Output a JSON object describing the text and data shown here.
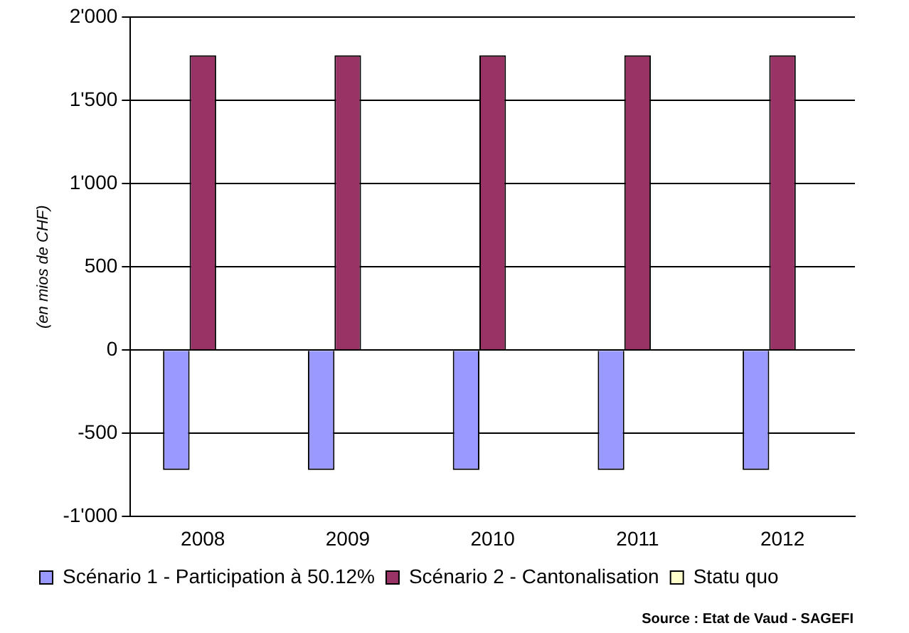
{
  "chart_data": {
    "type": "bar",
    "ylabel": "(en mios de CHF)",
    "categories": [
      "2008",
      "2009",
      "2010",
      "2011",
      "2012"
    ],
    "series": [
      {
        "name": "Scénario 1 - Participation à 50.12%",
        "color": "#9999ff",
        "values": [
          -720,
          -720,
          -720,
          -720,
          -720
        ]
      },
      {
        "name": "Scénario 2 - Cantonalisation",
        "color": "#993366",
        "values": [
          1770,
          1770,
          1770,
          1770,
          1770
        ]
      },
      {
        "name": "Statu quo",
        "color": "#ffffcc",
        "values": [
          0,
          0,
          0,
          0,
          0
        ]
      }
    ],
    "ylim": [
      -1000,
      2000
    ],
    "yticks": [
      {
        "value": -1000,
        "label": "-1'000"
      },
      -500,
      0,
      500,
      {
        "value": 1000,
        "label": "1'000"
      },
      {
        "value": 1500,
        "label": "1'500"
      },
      {
        "value": 2000,
        "label": "2'000"
      }
    ],
    "grid": "y",
    "legend": "bottom",
    "annotations": [
      "Source : Etat de Vaud - SAGEFI"
    ]
  }
}
